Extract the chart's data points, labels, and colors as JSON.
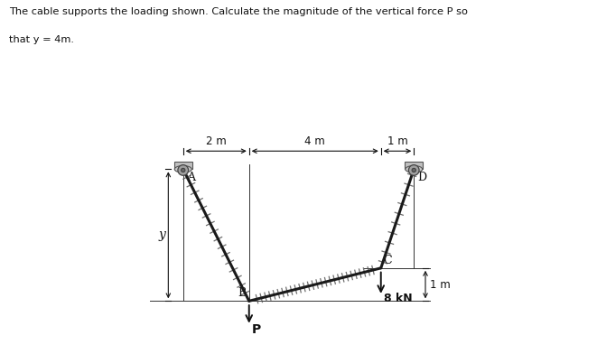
{
  "title_line1": "The cable supports the loading shown. Calculate the magnitude of the vertical force P so",
  "title_line2": "that y = 4m.",
  "bg_color": "#ffffff",
  "cable_color": "#1a1a1a",
  "cable_linewidth": 2.2,
  "text_color": "#111111",
  "points": {
    "A": [
      2.0,
      -1.0
    ],
    "B": [
      4.0,
      -5.0
    ],
    "C": [
      8.0,
      -4.0
    ],
    "D": [
      9.0,
      -1.0
    ]
  },
  "dim_label_2m": "2 m",
  "dim_label_4m": "4 m",
  "dim_label_1m_top": "1 m",
  "dim_label_1m_right": "1 m",
  "dim_label_y": "y",
  "label_A": "A",
  "label_B": "B",
  "label_C": "C",
  "label_D": "D",
  "label_P": "P",
  "label_8kN": "8 kN",
  "arrow_color": "#111111"
}
